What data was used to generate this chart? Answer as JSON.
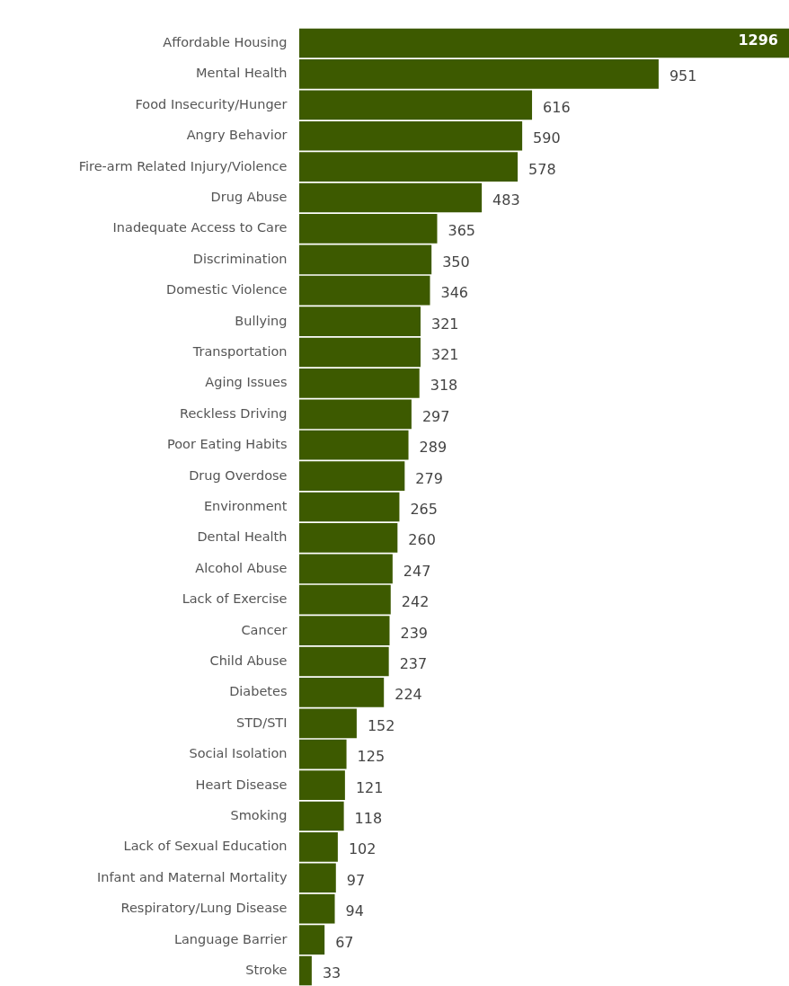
{
  "chart_data": {
    "type": "bar",
    "orientation": "horizontal",
    "data_labels": true,
    "color": "#3d5a00",
    "categories": [
      "Affordable Housing",
      "Mental Health",
      "Food Insecurity/Hunger",
      "Angry Behavior",
      "Fire-arm Related Injury/Violence",
      "Drug Abuse",
      "Inadequate Access to Care",
      "Discrimination",
      "Domestic Violence",
      "Bullying",
      "Transportation",
      "Aging Issues",
      "Reckless Driving",
      "Poor Eating Habits",
      "Drug Overdose",
      "Environment",
      "Dental Health",
      "Alcohol Abuse",
      "Lack of Exercise",
      "Cancer",
      "Child Abuse",
      "Diabetes",
      "STD/STI",
      "Social Isolation",
      "Heart Disease",
      "Smoking",
      "Lack of Sexual Education",
      "Infant and Maternal Mortality",
      "Respiratory/Lung Disease",
      "Language Barrier",
      "Stroke"
    ],
    "values": [
      1296,
      951,
      616,
      590,
      578,
      483,
      365,
      350,
      346,
      321,
      321,
      318,
      297,
      289,
      279,
      265,
      260,
      247,
      242,
      239,
      237,
      224,
      152,
      125,
      121,
      118,
      102,
      97,
      94,
      67,
      33
    ]
  }
}
